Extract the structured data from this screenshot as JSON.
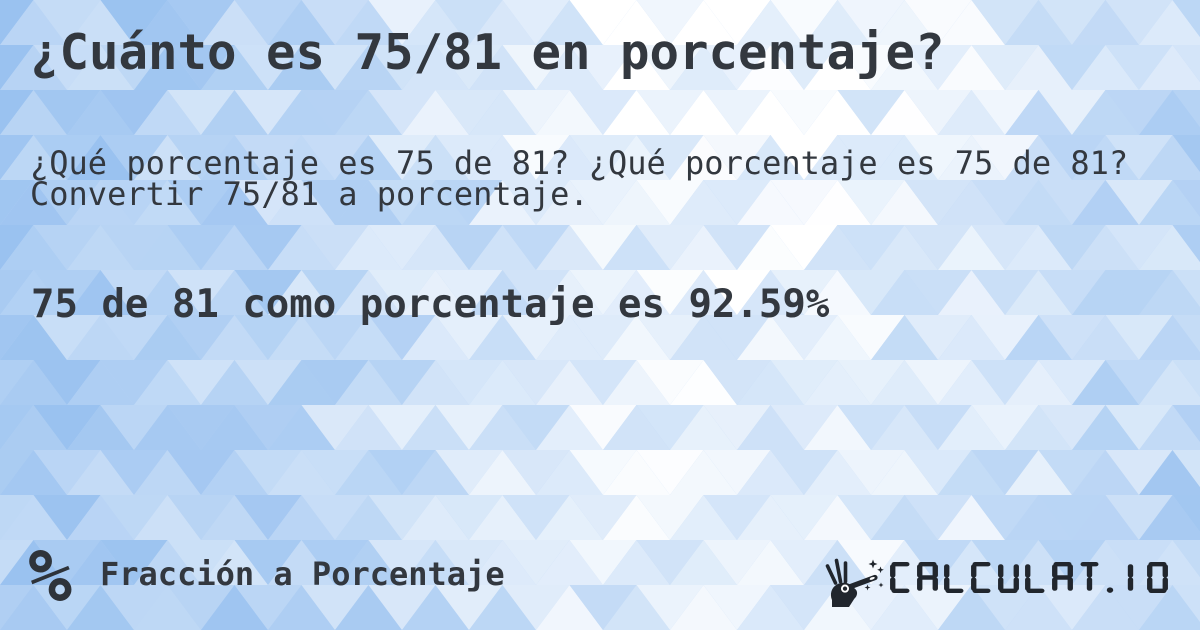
{
  "title": "¿Cuánto es 75/81 en porcentaje?",
  "description": {
    "lines": [
      "¿Qué porcentaje es 75 de 81? ¿Qué porcentaje es 75 de 81?",
      "Convertir 75/81 a porcentaje."
    ]
  },
  "answer": "75 de 81 como porcentaje es 92.59%",
  "footer": {
    "category_icon_glyph": "%",
    "category_label": "Fracción a Porcentaje",
    "logo_icon": "magic-wand-hand-icon",
    "logo_text": "CALCULAT.IO"
  },
  "colors": {
    "text": "#33383f",
    "logo": "#21262d",
    "background_blue": "#9ac2f0",
    "background_white": "#ffffff"
  }
}
